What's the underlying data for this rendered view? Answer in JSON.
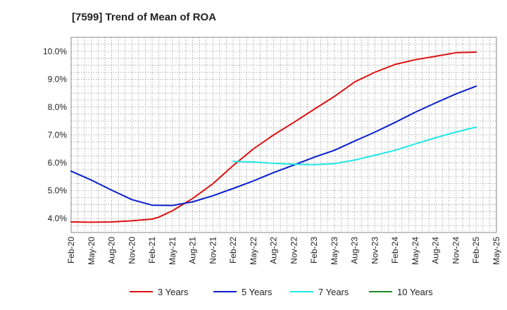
{
  "chart_data": {
    "type": "line",
    "title": "[7599]  Trend of Mean of ROA",
    "xlabel": "",
    "ylabel": "",
    "x_ticks": [
      "Feb-20",
      "May-20",
      "Aug-20",
      "Nov-20",
      "Feb-21",
      "May-21",
      "Aug-21",
      "Nov-21",
      "Feb-22",
      "May-22",
      "Aug-22",
      "Nov-22",
      "Feb-23",
      "May-23",
      "Aug-23",
      "Nov-23",
      "Feb-24",
      "May-24",
      "Aug-24",
      "Nov-24",
      "Feb-25",
      "May-25"
    ],
    "y_ticks": [
      "4.0%",
      "5.0%",
      "6.0%",
      "7.0%",
      "8.0%",
      "9.0%",
      "10.0%"
    ],
    "ylim": [
      3.5,
      10.5
    ],
    "y_unit": "%",
    "grid": true,
    "legend_position": "bottom",
    "series": [
      {
        "name": "3 Years",
        "color": "#dd1111",
        "points": [
          [
            "Feb-20",
            3.88
          ],
          [
            "May-20",
            3.87
          ],
          [
            "Aug-20",
            3.88
          ],
          [
            "Nov-20",
            3.92
          ],
          [
            "Feb-21",
            3.98
          ],
          [
            "Mar-21",
            4.05
          ],
          [
            "May-21",
            4.28
          ],
          [
            "Aug-21",
            4.72
          ],
          [
            "Nov-21",
            5.25
          ],
          [
            "Feb-22",
            5.9
          ],
          [
            "May-22",
            6.5
          ],
          [
            "Aug-22",
            7.0
          ],
          [
            "Nov-22",
            7.45
          ],
          [
            "Feb-23",
            7.92
          ],
          [
            "May-23",
            8.38
          ],
          [
            "Aug-23",
            8.9
          ],
          [
            "Nov-23",
            9.25
          ],
          [
            "Feb-24",
            9.53
          ],
          [
            "May-24",
            9.7
          ],
          [
            "Aug-24",
            9.82
          ],
          [
            "Nov-24",
            9.95
          ],
          [
            "Feb-25",
            9.97
          ]
        ]
      },
      {
        "name": "5 Years",
        "color": "#0a1ecc",
        "points": [
          [
            "Feb-20",
            5.7
          ],
          [
            "May-20",
            5.38
          ],
          [
            "Aug-20",
            5.02
          ],
          [
            "Nov-20",
            4.68
          ],
          [
            "Feb-21",
            4.48
          ],
          [
            "May-21",
            4.47
          ],
          [
            "Aug-21",
            4.6
          ],
          [
            "Nov-21",
            4.82
          ],
          [
            "Feb-22",
            5.08
          ],
          [
            "May-22",
            5.35
          ],
          [
            "Aug-22",
            5.65
          ],
          [
            "Nov-22",
            5.92
          ],
          [
            "Feb-23",
            6.2
          ],
          [
            "May-23",
            6.45
          ],
          [
            "Aug-23",
            6.78
          ],
          [
            "Nov-23",
            7.1
          ],
          [
            "Feb-24",
            7.45
          ],
          [
            "May-24",
            7.82
          ],
          [
            "Aug-24",
            8.15
          ],
          [
            "Nov-24",
            8.47
          ],
          [
            "Feb-25",
            8.75
          ]
        ]
      },
      {
        "name": "7 Years",
        "color": "#22e6e6",
        "points": [
          [
            "Feb-22",
            6.05
          ],
          [
            "May-22",
            6.03
          ],
          [
            "Aug-22",
            5.98
          ],
          [
            "Nov-22",
            5.95
          ],
          [
            "Feb-23",
            5.93
          ],
          [
            "May-23",
            5.97
          ],
          [
            "Aug-23",
            6.1
          ],
          [
            "Nov-23",
            6.27
          ],
          [
            "Feb-24",
            6.45
          ],
          [
            "May-24",
            6.68
          ],
          [
            "Aug-24",
            6.9
          ],
          [
            "Nov-24",
            7.1
          ],
          [
            "Feb-25",
            7.28
          ]
        ]
      },
      {
        "name": "10 Years",
        "color": "#1e8c1e",
        "points": []
      }
    ]
  }
}
